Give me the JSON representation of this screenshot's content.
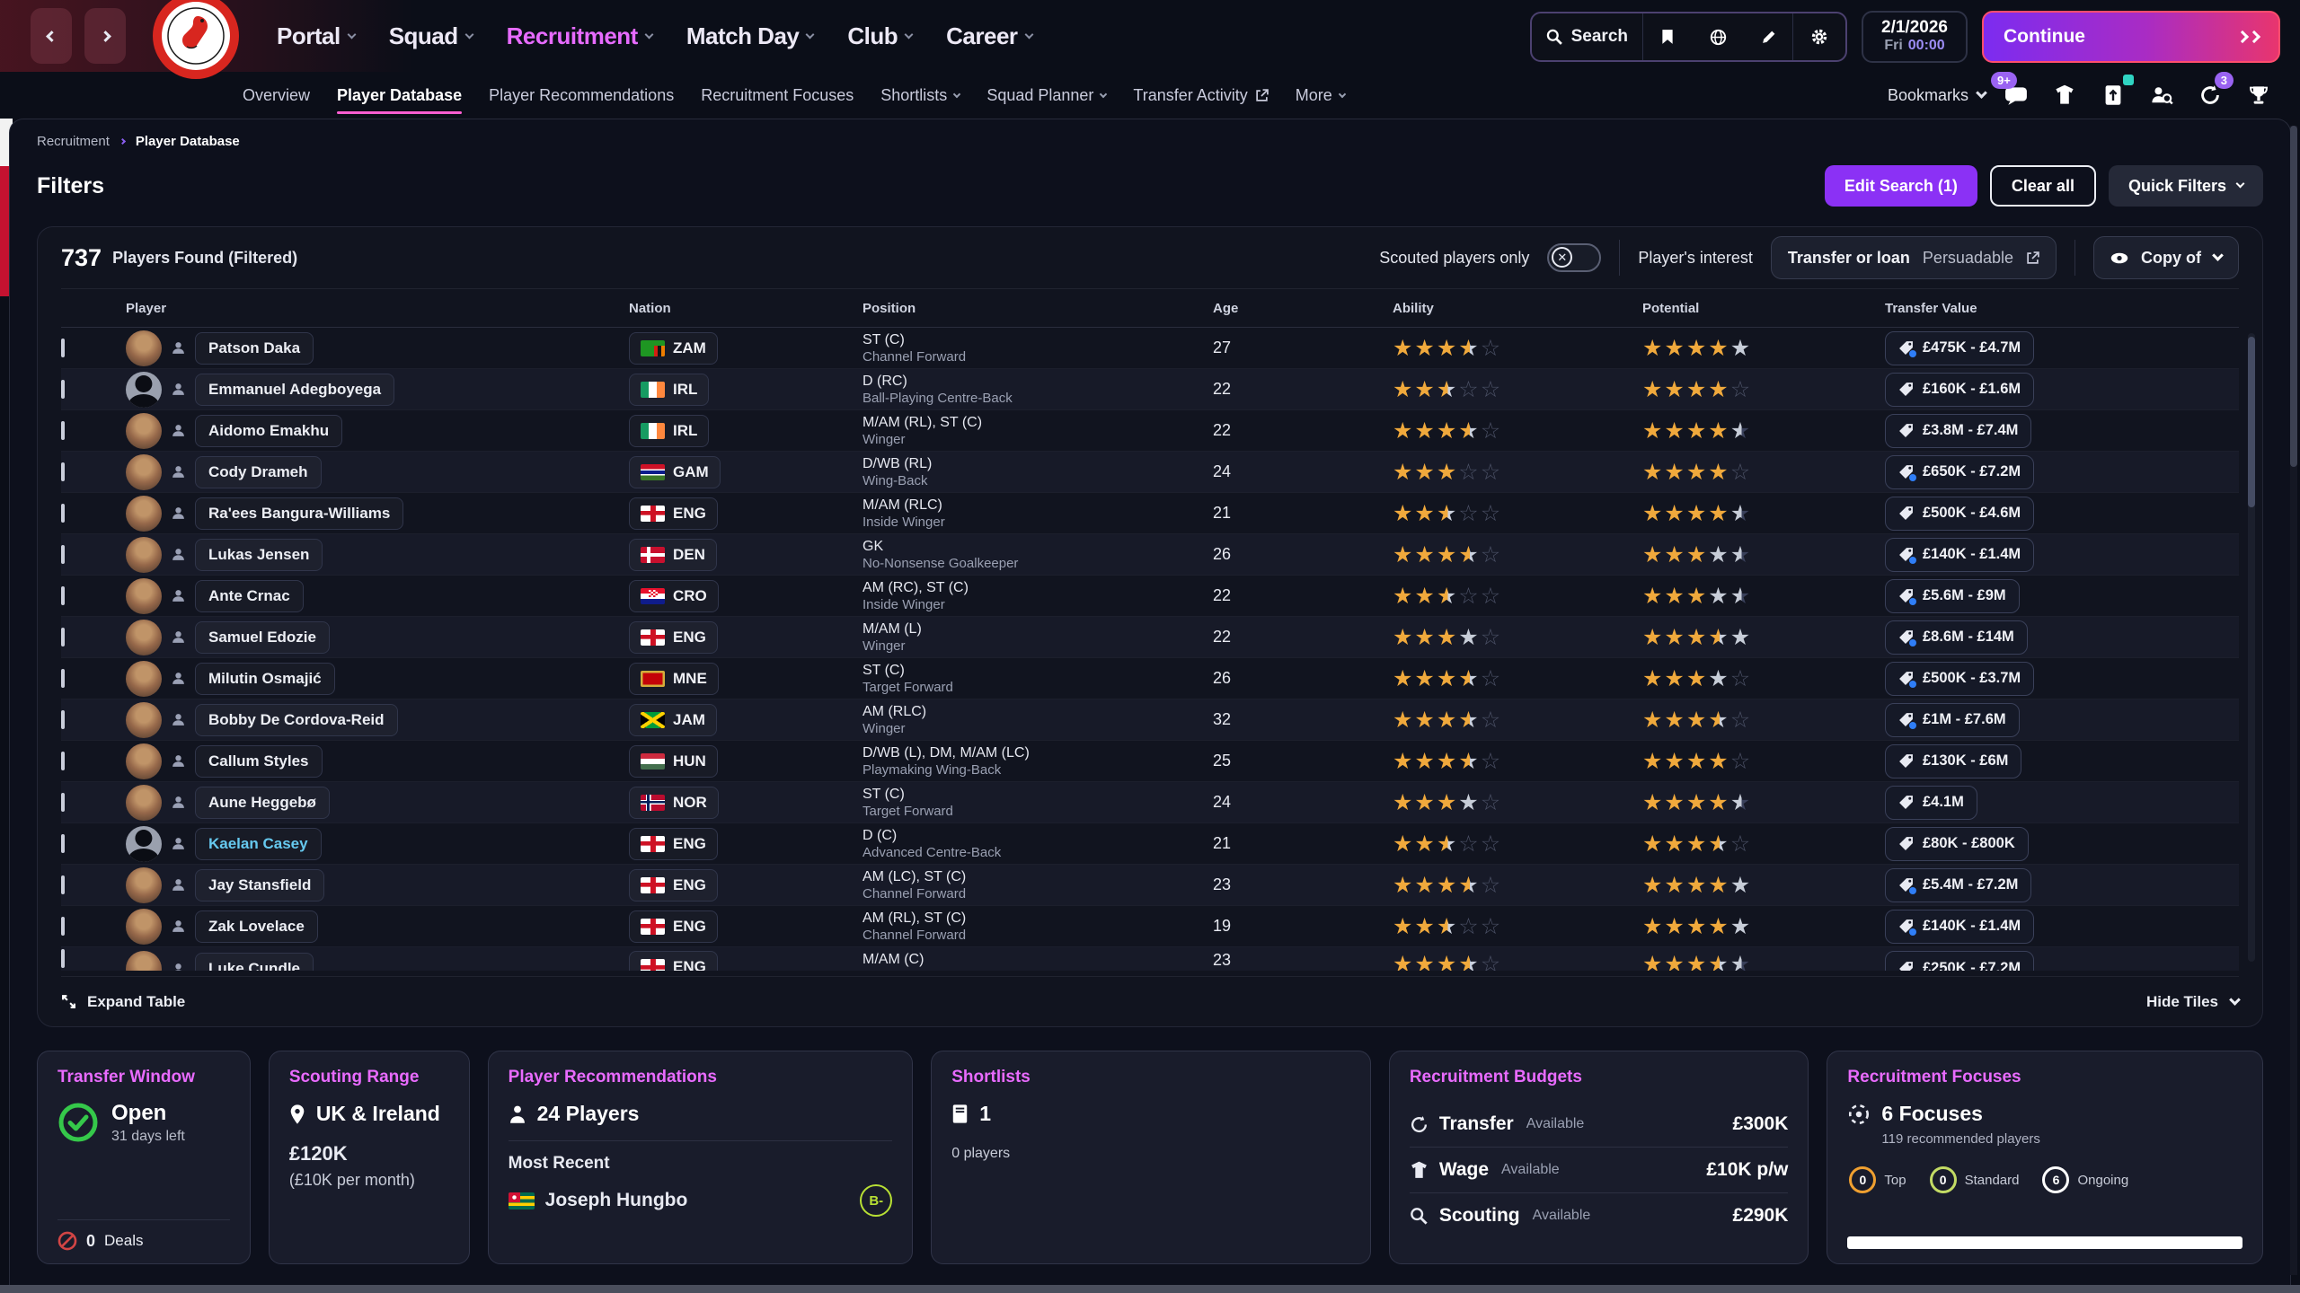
{
  "topbar": {
    "nav": [
      {
        "label": "Portal",
        "active": false
      },
      {
        "label": "Squad",
        "active": false
      },
      {
        "label": "Recruitment",
        "active": true
      },
      {
        "label": "Match Day",
        "active": false
      },
      {
        "label": "Club",
        "active": false
      },
      {
        "label": "Career",
        "active": false
      }
    ],
    "search_label": "Search",
    "date": {
      "date": "2/1/2026",
      "day": "Fri",
      "time": "00:00"
    },
    "continue_label": "Continue",
    "club": "Bristol City"
  },
  "subnav": {
    "items": [
      {
        "label": "Overview"
      },
      {
        "label": "Player Database",
        "active": true
      },
      {
        "label": "Player Recommendations"
      },
      {
        "label": "Recruitment Focuses"
      },
      {
        "label": "Shortlists",
        "chevron": true
      },
      {
        "label": "Squad Planner",
        "chevron": true
      },
      {
        "label": "Transfer Activity",
        "external": true
      },
      {
        "label": "More",
        "chevron": true
      }
    ],
    "bookmarks_label": "Bookmarks",
    "inbox_badge": "9+",
    "calls_badge": "3"
  },
  "breadcrumb": {
    "parent": "Recruitment",
    "current": "Player Database"
  },
  "filters": {
    "title": "Filters",
    "edit_search_label": "Edit Search (1)",
    "clear_all_label": "Clear all",
    "quick_filters_label": "Quick Filters"
  },
  "results": {
    "count": "737",
    "count_label": "Players Found (Filtered)",
    "scouted_toggle_label": "Scouted players only",
    "interest_label": "Player's interest",
    "interest_value_1": "Transfer or loan",
    "interest_value_2": "Persuadable",
    "view_selector_label": "Copy of"
  },
  "table": {
    "columns": [
      "Player",
      "Nation",
      "Position",
      "Age",
      "Ability",
      "Potential",
      "Transfer Value"
    ],
    "expand_label": "Expand Table",
    "hide_tiles_label": "Hide Tiles",
    "rows": [
      {
        "name": "Patson Daka",
        "nation": "ZAM",
        "pos": "ST (C)",
        "role": "Channel Forward",
        "age": "27",
        "ability": [
          "g",
          "g",
          "g",
          "h",
          "e"
        ],
        "potential": [
          "g",
          "g",
          "g",
          "g",
          "s"
        ],
        "value": "£475K - £4.7M",
        "tag_info": true,
        "avatar": "photo",
        "link": false
      },
      {
        "name": "Emmanuel Adegboyega",
        "nation": "IRL",
        "pos": "D (RC)",
        "role": "Ball-Playing Centre-Back",
        "age": "22",
        "ability": [
          "g",
          "g",
          "h",
          "e",
          "e"
        ],
        "potential": [
          "g",
          "g",
          "g",
          "g",
          "e"
        ],
        "value": "£160K - £1.6M",
        "tag_info": false,
        "avatar": "silhouette",
        "link": false
      },
      {
        "name": "Aidomo Emakhu",
        "nation": "IRL",
        "pos": "M/AM (RL), ST (C)",
        "role": "Winger",
        "age": "22",
        "ability": [
          "g",
          "g",
          "g",
          "h",
          "e"
        ],
        "potential": [
          "g",
          "g",
          "g",
          "g",
          "sh"
        ],
        "value": "£3.8M - £7.4M",
        "tag_info": false,
        "avatar": "photo",
        "link": false
      },
      {
        "name": "Cody Drameh",
        "nation": "GAM",
        "pos": "D/WB (RL)",
        "role": "Wing-Back",
        "age": "24",
        "ability": [
          "g",
          "g",
          "g",
          "e",
          "e"
        ],
        "potential": [
          "g",
          "g",
          "g",
          "g",
          "e"
        ],
        "value": "£650K - £7.2M",
        "tag_info": true,
        "avatar": "photo",
        "link": false
      },
      {
        "name": "Ra'ees Bangura-Williams",
        "nation": "ENG",
        "pos": "M/AM (RLC)",
        "role": "Inside Winger",
        "age": "21",
        "ability": [
          "g",
          "g",
          "h",
          "e",
          "e"
        ],
        "potential": [
          "g",
          "g",
          "g",
          "g",
          "sh"
        ],
        "value": "£500K - £4.6M",
        "tag_info": false,
        "avatar": "photo",
        "link": false
      },
      {
        "name": "Lukas Jensen",
        "nation": "DEN",
        "pos": "GK",
        "role": "No-Nonsense Goalkeeper",
        "age": "26",
        "ability": [
          "g",
          "g",
          "g",
          "h",
          "e"
        ],
        "potential": [
          "g",
          "g",
          "g",
          "s",
          "sh"
        ],
        "value": "£140K - £1.4M",
        "tag_info": true,
        "avatar": "photo",
        "link": false
      },
      {
        "name": "Ante Crnac",
        "nation": "CRO",
        "pos": "AM (RC), ST (C)",
        "role": "Inside Winger",
        "age": "22",
        "ability": [
          "g",
          "g",
          "h",
          "e",
          "e"
        ],
        "potential": [
          "g",
          "g",
          "g",
          "s",
          "sh"
        ],
        "value": "£5.6M - £9M",
        "tag_info": true,
        "avatar": "photo",
        "link": false
      },
      {
        "name": "Samuel Edozie",
        "nation": "ENG",
        "pos": "M/AM (L)",
        "role": "Winger",
        "age": "22",
        "ability": [
          "g",
          "g",
          "g",
          "s",
          "e"
        ],
        "potential": [
          "g",
          "g",
          "g",
          "h",
          "s"
        ],
        "value": "£8.6M - £14M",
        "tag_info": true,
        "avatar": "photo",
        "link": false
      },
      {
        "name": "Milutin Osmajić",
        "nation": "MNE",
        "pos": "ST (C)",
        "role": "Target Forward",
        "age": "26",
        "ability": [
          "g",
          "g",
          "g",
          "h",
          "e"
        ],
        "potential": [
          "g",
          "g",
          "g",
          "s",
          "e"
        ],
        "value": "£500K - £3.7M",
        "tag_info": true,
        "avatar": "photo",
        "link": false
      },
      {
        "name": "Bobby De Cordova-Reid",
        "nation": "JAM",
        "pos": "AM (RLC)",
        "role": "Winger",
        "age": "32",
        "ability": [
          "g",
          "g",
          "g",
          "h",
          "e"
        ],
        "potential": [
          "g",
          "g",
          "g",
          "h",
          "e"
        ],
        "value": "£1M - £7.6M",
        "tag_info": true,
        "avatar": "photo",
        "link": false
      },
      {
        "name": "Callum Styles",
        "nation": "HUN",
        "pos": "D/WB (L), DM, M/AM (LC)",
        "role": "Playmaking Wing-Back",
        "age": "25",
        "ability": [
          "g",
          "g",
          "g",
          "h",
          "e"
        ],
        "potential": [
          "g",
          "g",
          "g",
          "g",
          "e"
        ],
        "value": "£130K - £6M",
        "tag_info": false,
        "avatar": "photo",
        "link": false
      },
      {
        "name": "Aune Heggebø",
        "nation": "NOR",
        "pos": "ST (C)",
        "role": "Target Forward",
        "age": "24",
        "ability": [
          "g",
          "g",
          "g",
          "s",
          "e"
        ],
        "potential": [
          "g",
          "g",
          "g",
          "g",
          "sh"
        ],
        "value": "£4.1M",
        "tag_info": false,
        "avatar": "photo",
        "link": false
      },
      {
        "name": "Kaelan Casey",
        "nation": "ENG",
        "pos": "D (C)",
        "role": "Advanced Centre-Back",
        "age": "21",
        "ability": [
          "g",
          "g",
          "h",
          "e",
          "e"
        ],
        "potential": [
          "g",
          "g",
          "g",
          "h",
          "e"
        ],
        "value": "£80K - £800K",
        "tag_info": false,
        "avatar": "silhouette",
        "link": true
      },
      {
        "name": "Jay Stansfield",
        "nation": "ENG",
        "pos": "AM (LC), ST (C)",
        "role": "Channel Forward",
        "age": "23",
        "ability": [
          "g",
          "g",
          "g",
          "h",
          "e"
        ],
        "potential": [
          "g",
          "g",
          "g",
          "g",
          "s"
        ],
        "value": "£5.4M - £7.2M",
        "tag_info": true,
        "avatar": "photo",
        "link": false
      },
      {
        "name": "Zak Lovelace",
        "nation": "ENG",
        "pos": "AM (RL), ST (C)",
        "role": "Channel Forward",
        "age": "19",
        "ability": [
          "g",
          "g",
          "h",
          "e",
          "e"
        ],
        "potential": [
          "g",
          "g",
          "g",
          "g",
          "s"
        ],
        "value": "£140K - £1.4M",
        "tag_info": true,
        "avatar": "photo",
        "link": false
      },
      {
        "name": "Luke Cundle",
        "nation": "ENG",
        "pos": "M/AM (C)",
        "role": "",
        "age": "23",
        "ability": [
          "g",
          "g",
          "g",
          "h",
          "e"
        ],
        "potential": [
          "g",
          "g",
          "g",
          "h",
          "sh"
        ],
        "value": "£250K - £7.2M",
        "tag_info": true,
        "avatar": "photo",
        "link": false,
        "partial": true
      }
    ]
  },
  "tiles": {
    "transfer_window": {
      "title": "Transfer Window",
      "status": "Open",
      "days_left": "31 days left",
      "deals_count": "0",
      "deals_label": "Deals"
    },
    "scouting_range": {
      "title": "Scouting Range",
      "region": "UK & Ireland",
      "budget": "£120K",
      "per_month": "(£10K per month)"
    },
    "player_recommendations": {
      "title": "Player Recommendations",
      "count": "24 Players",
      "most_recent_label": "Most Recent",
      "most_recent_player": "Joseph Hungbo",
      "most_recent_nation": "TOG",
      "rating": "B-"
    },
    "shortlists": {
      "title": "Shortlists",
      "count": "1",
      "players": "0 players"
    },
    "recruitment_budgets": {
      "title": "Recruitment Budgets",
      "rows": [
        {
          "label": "Transfer",
          "sub": "Available",
          "value": "£300K"
        },
        {
          "label": "Wage",
          "sub": "Available",
          "value": "£10K p/w"
        },
        {
          "label": "Scouting",
          "sub": "Available",
          "value": "£290K"
        }
      ]
    },
    "recruitment_focuses": {
      "title": "Recruitment Focuses",
      "count": "6 Focuses",
      "sub": "119 recommended players",
      "stats": [
        {
          "value": "0",
          "label": "Top",
          "color": "#f0a030"
        },
        {
          "value": "0",
          "label": "Standard",
          "color": "#c3db64"
        },
        {
          "value": "6",
          "label": "Ongoing",
          "color": "#ffffff"
        }
      ],
      "progress_pct": 100
    }
  }
}
